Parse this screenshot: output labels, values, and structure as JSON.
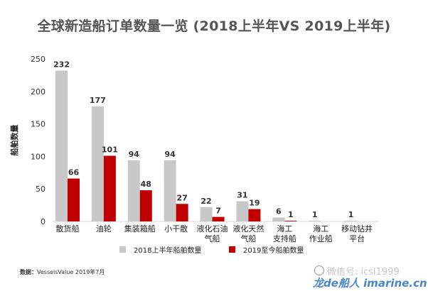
{
  "title": "全球新造船订单数量一览 (2018上半年VS 2019上半年)",
  "source": {
    "label": "数据：",
    "text": "VesselsValue 2019年7月"
  },
  "watermark": {
    "line1": "微信号: icsl1999",
    "line2": "龙de船人 imarine.cn"
  },
  "chart_data": {
    "type": "bar",
    "ylabel": "船舶数量",
    "xlabel": "",
    "ylim": [
      0,
      250
    ],
    "yticks": [
      0,
      50,
      100,
      150,
      200,
      250
    ],
    "grid": false,
    "legend_position": "bottom",
    "categories": [
      [
        "散货船"
      ],
      [
        "油轮"
      ],
      [
        "集装箱船"
      ],
      [
        "小干散"
      ],
      [
        "液化石油",
        "气船"
      ],
      [
        "液化天然",
        "气船"
      ],
      [
        "海工",
        "支持船"
      ],
      [
        "海工",
        "作业船"
      ],
      [
        "移动钻井",
        "平台"
      ]
    ],
    "series": [
      {
        "name": "2018上半年船舶数量",
        "color": "#c8c8c8",
        "values": [
          232,
          177,
          94,
          94,
          22,
          31,
          6,
          1,
          1
        ]
      },
      {
        "name": "2019至今船舶数量",
        "color": "#c00000",
        "values": [
          66,
          101,
          48,
          27,
          7,
          19,
          1,
          0,
          0
        ]
      }
    ],
    "value_labels": [
      [
        "232",
        "177",
        "94",
        "94",
        "22",
        "31",
        "6",
        "1",
        "1"
      ],
      [
        "66",
        "101",
        "48",
        "27",
        "7",
        "19",
        "1",
        "",
        ""
      ]
    ]
  }
}
